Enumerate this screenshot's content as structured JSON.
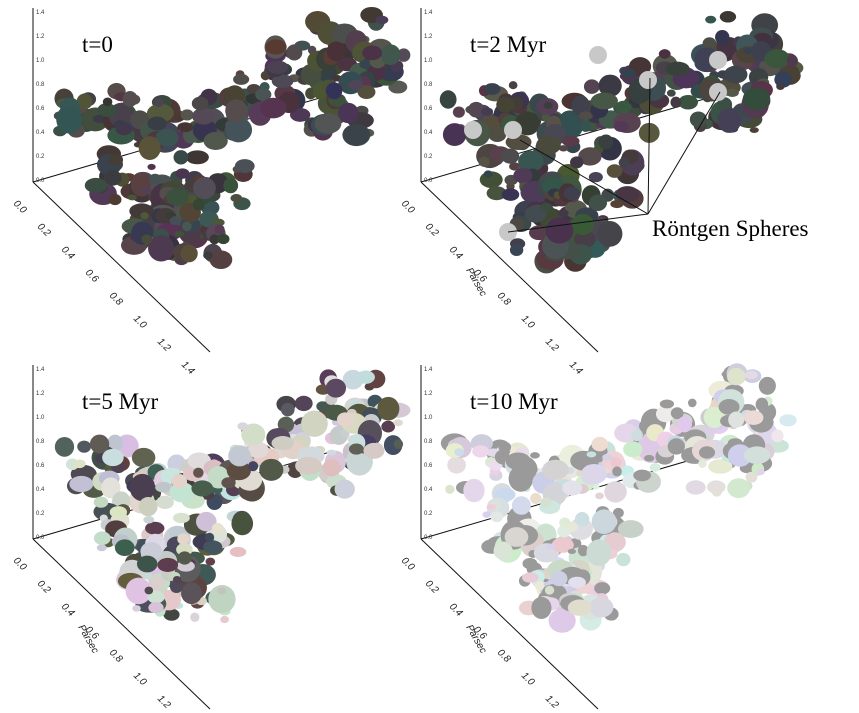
{
  "panels": [
    {
      "label": "t=0"
    },
    {
      "label": "t=2 Myr"
    },
    {
      "label": "t=5 Myr"
    },
    {
      "label": "t=10 Myr"
    }
  ],
  "axis_label": "Parsec",
  "ticks": [
    "0.0",
    "0.2",
    "0.4",
    "0.6",
    "0.8",
    "1.0",
    "1.2",
    "1.4"
  ],
  "annotation": "Röntgen Spheres"
}
